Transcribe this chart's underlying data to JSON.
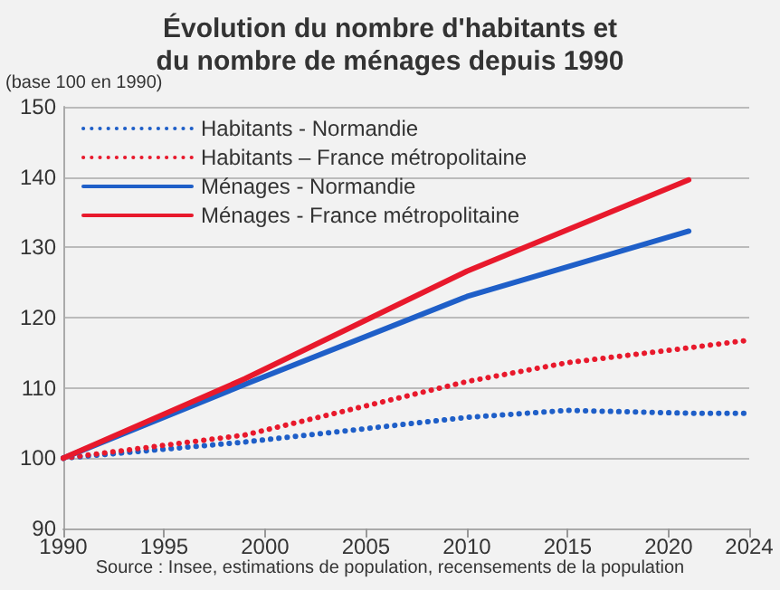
{
  "chart_data": {
    "type": "line",
    "title": "Évolution du nombre d'habitants et\ndu nombre de ménages depuis 1990",
    "ylabel": "(base 100 en 1990)",
    "annotations": [
      "Source : Insee, estimations de population, recensements de la population"
    ],
    "series": [
      {
        "name": "Habitants - Normandie",
        "color": "#1f5fc8",
        "line_style": "dotted",
        "x": [
          1990,
          1999,
          2010,
          2015,
          2021,
          2024
        ],
        "values": [
          100,
          102.3,
          105.8,
          106.8,
          106.4,
          106.4
        ]
      },
      {
        "name": "Habitants – France métropolitaine",
        "color": "#e8192c",
        "line_style": "dotted",
        "x": [
          1990,
          1999,
          2010,
          2015,
          2021,
          2024
        ],
        "values": [
          100,
          103.3,
          110.9,
          113.6,
          115.7,
          116.8
        ]
      },
      {
        "name": "Ménages - Normandie",
        "color": "#1f5fc8",
        "line_style": "solid",
        "x": [
          1990,
          1999,
          2010,
          2021
        ],
        "values": [
          100,
          110.5,
          123,
          132.3
        ]
      },
      {
        "name": "Ménages - France métropolitaine",
        "color": "#e8192c",
        "line_style": "solid",
        "x": [
          1990,
          1999,
          2010,
          2021
        ],
        "values": [
          100,
          111.3,
          126.6,
          139.6
        ]
      }
    ],
    "xlim": [
      1990,
      2024
    ],
    "xticks": [
      1990,
      1995,
      2000,
      2005,
      2010,
      2015,
      2020,
      2024
    ],
    "ylim": [
      90,
      150
    ],
    "yticks": [
      90,
      100,
      110,
      120,
      130,
      140,
      150
    ],
    "grid": "y",
    "legend": "top left",
    "marker": "none"
  }
}
